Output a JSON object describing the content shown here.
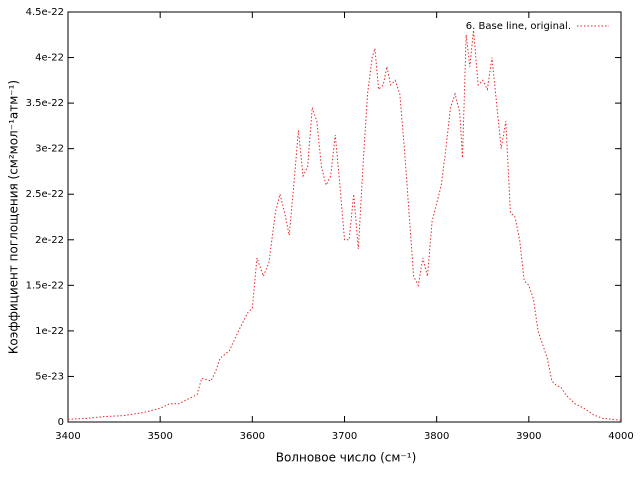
{
  "chart_data": {
    "type": "line",
    "xlabel": "Волновое число (см⁻¹)",
    "ylabel": "Коэффициент поглощения (см²мол⁻¹атм⁻¹)",
    "xlim": [
      3400,
      4000
    ],
    "xticks": [
      3400,
      3500,
      3600,
      3700,
      3800,
      3900,
      4000
    ],
    "ylim": [
      0,
      4.5e-22
    ],
    "yticks": [
      0,
      5e-23,
      1e-22,
      1.5e-22,
      2e-22,
      2.5e-22,
      3e-22,
      3.5e-22,
      4e-22,
      4.5e-22
    ],
    "legend": "top-right",
    "series": [
      {
        "name": "6.  Base line, original.",
        "color": "#e8262a",
        "x": [
          3400,
          3420,
          3440,
          3460,
          3480,
          3500,
          3510,
          3520,
          3530,
          3540,
          3545,
          3555,
          3560,
          3565,
          3575,
          3585,
          3590,
          3595,
          3600,
          3605,
          3612,
          3618,
          3625,
          3630,
          3635,
          3640,
          3645,
          3650,
          3655,
          3660,
          3665,
          3670,
          3675,
          3680,
          3685,
          3690,
          3695,
          3700,
          3705,
          3710,
          3715,
          3720,
          3725,
          3730,
          3733,
          3737,
          3742,
          3746,
          3750,
          3755,
          3760,
          3765,
          3770,
          3775,
          3780,
          3785,
          3790,
          3795,
          3800,
          3805,
          3810,
          3815,
          3820,
          3825,
          3828,
          3832,
          3836,
          3840,
          3845,
          3850,
          3855,
          3860,
          3865,
          3870,
          3875,
          3880,
          3885,
          3890,
          3895,
          3900,
          3905,
          3910,
          3915,
          3920,
          3925,
          3930,
          3935,
          3940,
          3950,
          3960,
          3970,
          3980,
          3990,
          4000
        ],
        "values": [
          3e-24,
          4e-24,
          6e-24,
          7e-24,
          1e-23,
          1.5e-23,
          2e-23,
          2e-23,
          2.5e-23,
          3e-23,
          4.8e-23,
          4.5e-23,
          5.5e-23,
          7e-23,
          7.8e-23,
          1e-22,
          1.1e-22,
          1.2e-22,
          1.25e-22,
          1.8e-22,
          1.6e-22,
          1.75e-22,
          2.3e-22,
          2.5e-22,
          2.3e-22,
          2.05e-22,
          2.6e-22,
          3.2e-22,
          2.7e-22,
          2.8e-22,
          3.45e-22,
          3.3e-22,
          2.8e-22,
          2.6e-22,
          2.7e-22,
          3.15e-22,
          2.6e-22,
          2e-22,
          2e-22,
          2.5e-22,
          1.9e-22,
          2.8e-22,
          3.6e-22,
          4e-22,
          4.1e-22,
          3.65e-22,
          3.7e-22,
          3.9e-22,
          3.7e-22,
          3.75e-22,
          3.6e-22,
          3e-22,
          2.3e-22,
          1.6e-22,
          1.5e-22,
          1.8e-22,
          1.6e-22,
          2.2e-22,
          2.4e-22,
          2.6e-22,
          3e-22,
          3.45e-22,
          3.6e-22,
          3.4e-22,
          2.9e-22,
          4.25e-22,
          3.9e-22,
          4.3e-22,
          3.7e-22,
          3.75e-22,
          3.65e-22,
          4e-22,
          3.5e-22,
          3e-22,
          3.3e-22,
          2.3e-22,
          2.25e-22,
          2e-22,
          1.55e-22,
          1.5e-22,
          1.35e-22,
          1e-22,
          8.5e-23,
          7e-23,
          4.5e-23,
          4e-23,
          3.8e-23,
          3e-23,
          2e-23,
          1.5e-23,
          8e-24,
          4e-24,
          3e-24,
          2e-24
        ]
      }
    ]
  }
}
